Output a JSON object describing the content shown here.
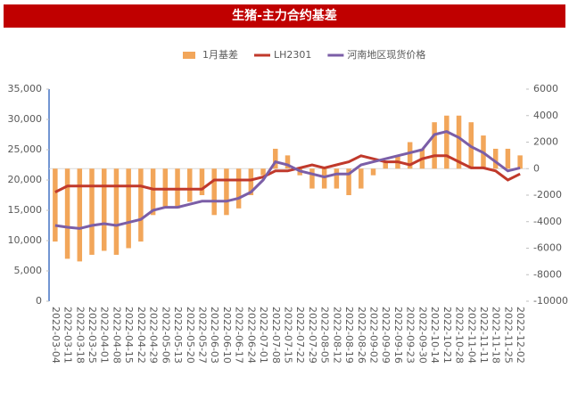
{
  "chart_data": {
    "type": "combo",
    "title": "生猪-主力合约基差",
    "categories": [
      "2022-03-04",
      "2022-03-11",
      "2022-03-18",
      "2022-03-25",
      "2022-04-01",
      "2022-04-08",
      "2022-04-15",
      "2022-04-22",
      "2022-04-29",
      "2022-05-06",
      "2022-05-13",
      "2022-05-20",
      "2022-05-27",
      "2022-06-03",
      "2022-06-10",
      "2022-06-17",
      "2022-06-24",
      "2022-07-01",
      "2022-07-08",
      "2022-07-15",
      "2022-07-22",
      "2022-07-29",
      "2022-08-05",
      "2022-08-12",
      "2022-08-19",
      "2022-08-26",
      "2022-09-02",
      "2022-09-09",
      "2022-09-16",
      "2022-09-23",
      "2022-09-30",
      "2022-10-14",
      "2022-10-21",
      "2022-10-28",
      "2022-11-04",
      "2022-11-11",
      "2022-11-18",
      "2022-11-25",
      "2022-12-02"
    ],
    "series": [
      {
        "name": "1月基差",
        "type": "bar",
        "axis": "y2",
        "color": "#f2a65a",
        "values": [
          -5500,
          -6800,
          -7000,
          -6500,
          -6200,
          -6500,
          -6000,
          -5500,
          -3500,
          -3000,
          -3000,
          -2500,
          -2000,
          -3500,
          -3500,
          -3000,
          -2000,
          -500,
          1500,
          1000,
          -500,
          -1500,
          -1500,
          -1500,
          -2000,
          -1500,
          -500,
          500,
          1000,
          2000,
          1500,
          3500,
          4000,
          4000,
          3500,
          2500,
          1500,
          1500,
          1000
        ]
      },
      {
        "name": "LH2301",
        "type": "line",
        "color": "#c0392b",
        "values": [
          18000,
          19000,
          19000,
          19000,
          19000,
          19000,
          19000,
          19000,
          18500,
          18500,
          18500,
          18500,
          18500,
          20000,
          20000,
          20000,
          20000,
          20500,
          21500,
          21500,
          22000,
          22500,
          22000,
          22500,
          23000,
          24000,
          23500,
          23000,
          23000,
          22500,
          23500,
          24000,
          24000,
          23000,
          22000,
          22000,
          21500,
          20000,
          21000
        ]
      },
      {
        "name": "河南地区现货价格",
        "type": "line",
        "color": "#7b5ea7",
        "values": [
          12500,
          12200,
          12000,
          12500,
          12800,
          12500,
          13000,
          13500,
          15000,
          15500,
          15500,
          16000,
          16500,
          16500,
          16500,
          17000,
          18000,
          20000,
          23000,
          22500,
          21500,
          21000,
          20500,
          21000,
          21000,
          22500,
          23000,
          23500,
          24000,
          24500,
          25000,
          27500,
          28000,
          27000,
          25500,
          24500,
          23000,
          21500,
          22000
        ]
      }
    ],
    "ylim": [
      0,
      35000
    ],
    "yticks": [
      0,
      {
        "value": 5000,
        "label": "5,000"
      },
      {
        "value": 10000,
        "label": "10,000"
      },
      {
        "value": 15000,
        "label": "15,000"
      },
      {
        "value": 20000,
        "label": "20,000"
      },
      {
        "value": 25000,
        "label": "25,000"
      },
      {
        "value": 30000,
        "label": "30,000"
      },
      {
        "value": 35000,
        "label": "35,000"
      }
    ],
    "y2lim": [
      -10000,
      6000
    ],
    "y2ticks": [
      -10000,
      -8000,
      -6000,
      -4000,
      -2000,
      0,
      2000,
      4000,
      6000
    ],
    "legend": "top"
  }
}
